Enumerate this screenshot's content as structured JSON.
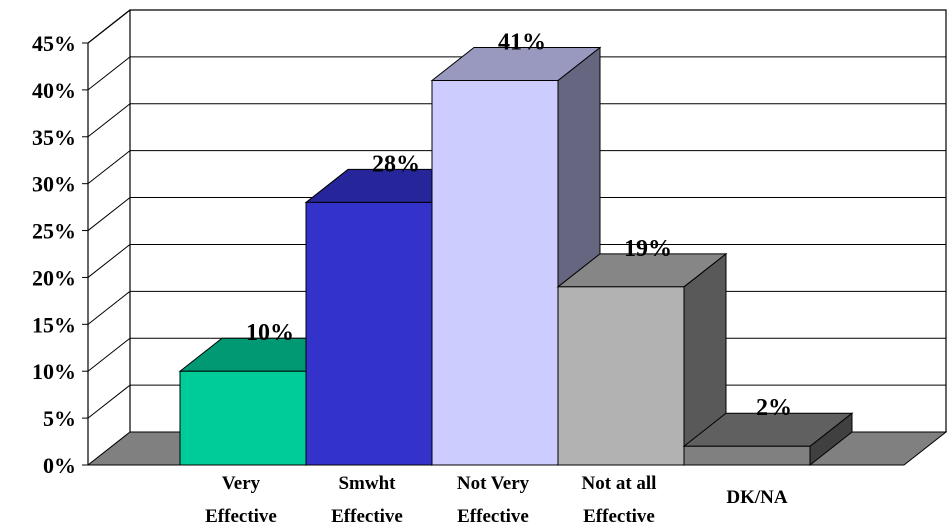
{
  "chart_data": {
    "type": "bar",
    "title": "",
    "xlabel": "",
    "ylabel": "",
    "ylim": [
      0,
      45
    ],
    "yticks": [
      "0%",
      "5%",
      "10%",
      "15%",
      "20%",
      "25%",
      "30%",
      "35%",
      "40%",
      "45%"
    ],
    "categories": [
      [
        "Very",
        "Effective"
      ],
      [
        "Smwht",
        "Effective"
      ],
      [
        "Not Very",
        "Effective"
      ],
      [
        "Not at all",
        "Effective"
      ],
      [
        "DK/NA"
      ]
    ],
    "values": [
      10,
      28,
      41,
      19,
      2
    ],
    "data_labels": [
      "10%",
      "28%",
      "41%",
      "19%",
      "2%"
    ],
    "grid": true,
    "colors": [
      {
        "front": "#00CC99",
        "top": "#009974",
        "side": "#00664D"
      },
      {
        "front": "#3333CC",
        "top": "#26269A",
        "side": "#1A1A66"
      },
      {
        "front": "#CCCCFF",
        "top": "#9999C0",
        "side": "#666680"
      },
      {
        "front": "#B2B2B2",
        "top": "#868686",
        "side": "#595959"
      },
      {
        "front": "#808080",
        "top": "#606060",
        "side": "#404040"
      }
    ],
    "floor_color": "#808080"
  }
}
